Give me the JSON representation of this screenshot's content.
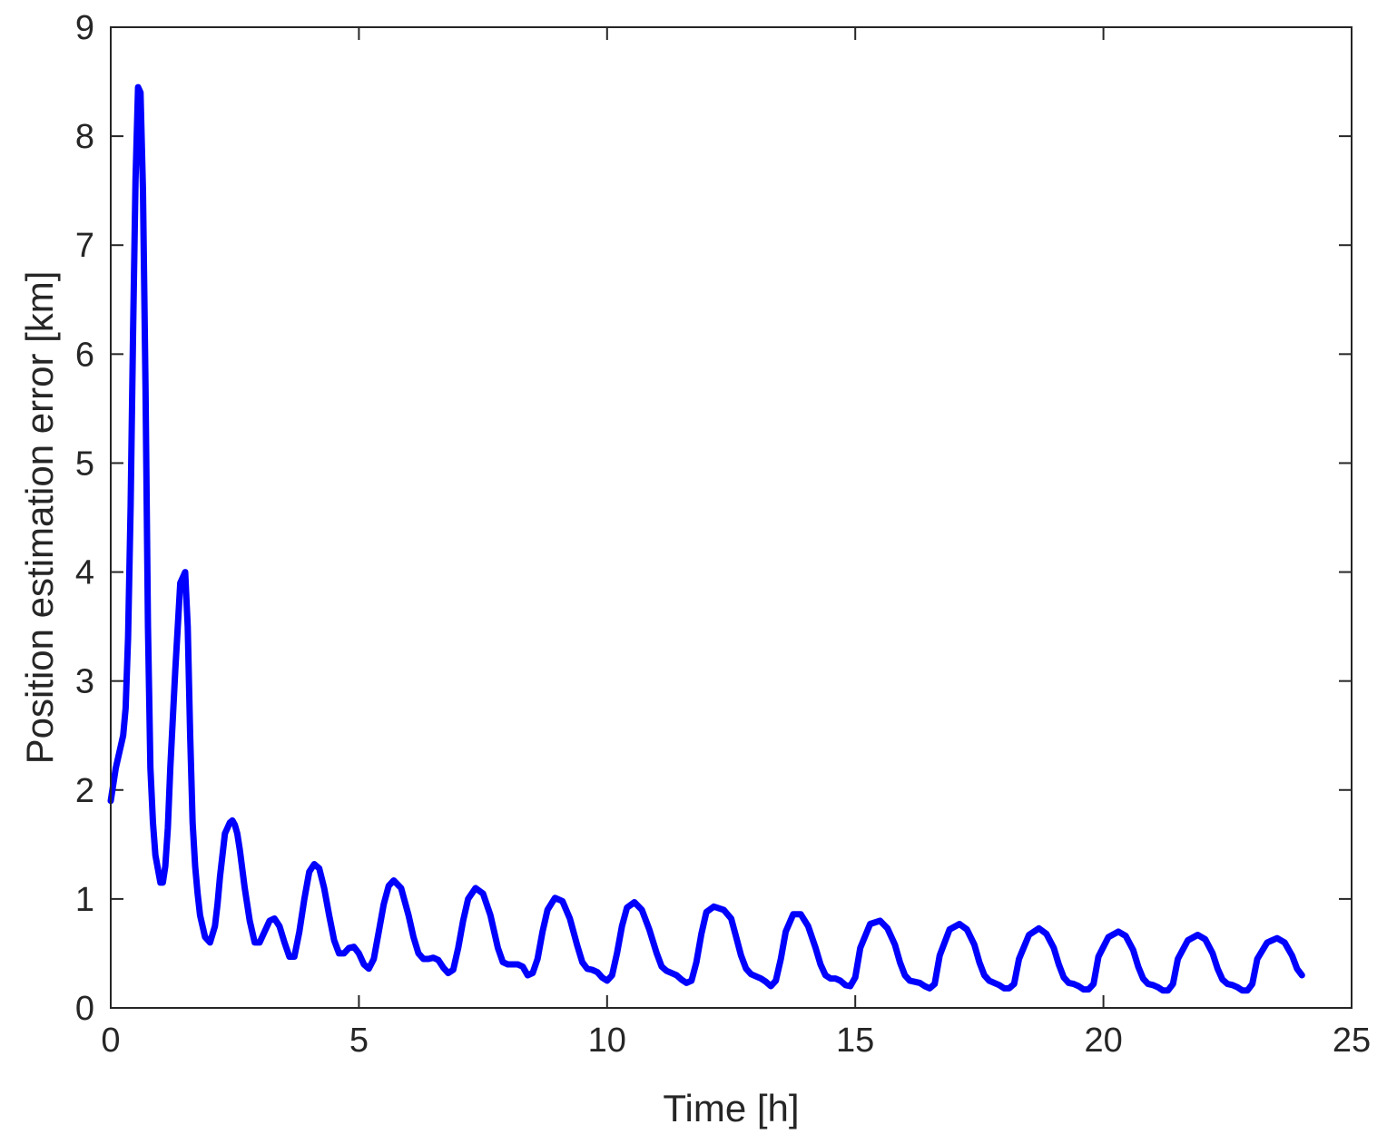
{
  "chart_data": {
    "type": "line",
    "title": "",
    "xlabel": "Time [h]",
    "ylabel": "Position estimation error [km]",
    "xlim": [
      0,
      25
    ],
    "ylim": [
      0,
      9
    ],
    "xticks": [
      0,
      5,
      10,
      15,
      20,
      25
    ],
    "yticks": [
      0,
      1,
      2,
      3,
      4,
      5,
      6,
      7,
      8,
      9
    ],
    "grid": false,
    "line_color": "#0000ff",
    "axis_color": "#262626",
    "series": [
      {
        "x": [
          0,
          0.1,
          0.25,
          0.3,
          0.35,
          0.4,
          0.45,
          0.5,
          0.55,
          0.6,
          0.65,
          0.7,
          0.75,
          0.8,
          0.85,
          0.9,
          1.0,
          1.05,
          1.1,
          1.15,
          1.2,
          1.3,
          1.4,
          1.5,
          1.55,
          1.6,
          1.65,
          1.7,
          1.75,
          1.8,
          1.9,
          2.0,
          2.1,
          2.15,
          2.2,
          2.3,
          2.4,
          2.45,
          2.5,
          2.55,
          2.6,
          2.7,
          2.8,
          2.9,
          3.0,
          3.1,
          3.2,
          3.3,
          3.4,
          3.5,
          3.6,
          3.7,
          3.8,
          3.9,
          4.0,
          4.1,
          4.2,
          4.3,
          4.4,
          4.5,
          4.6,
          4.7,
          4.8,
          4.9,
          5.0,
          5.1,
          5.2,
          5.3,
          5.4,
          5.5,
          5.6,
          5.7,
          5.85,
          6.0,
          6.1,
          6.2,
          6.3,
          6.4,
          6.5,
          6.6,
          6.7,
          6.8,
          6.9,
          7.0,
          7.1,
          7.2,
          7.35,
          7.5,
          7.65,
          7.8,
          7.9,
          8.0,
          8.1,
          8.2,
          8.3,
          8.4,
          8.5,
          8.6,
          8.7,
          8.8,
          8.95,
          9.1,
          9.25,
          9.4,
          9.5,
          9.6,
          9.7,
          9.8,
          9.9,
          10.0,
          10.1,
          10.2,
          10.3,
          10.4,
          10.55,
          10.7,
          10.85,
          11.0,
          11.1,
          11.2,
          11.3,
          11.4,
          11.5,
          11.6,
          11.7,
          11.8,
          11.9,
          12.0,
          12.15,
          12.35,
          12.5,
          12.6,
          12.7,
          12.8,
          12.9,
          13.0,
          13.1,
          13.2,
          13.3,
          13.4,
          13.5,
          13.6,
          13.75,
          13.9,
          14.05,
          14.2,
          14.3,
          14.4,
          14.5,
          14.6,
          14.7,
          14.8,
          14.9,
          15.0,
          15.1,
          15.3,
          15.5,
          15.65,
          15.8,
          15.9,
          16.0,
          16.1,
          16.2,
          16.3,
          16.4,
          16.5,
          16.6,
          16.7,
          16.9,
          17.1,
          17.25,
          17.4,
          17.5,
          17.6,
          17.7,
          17.8,
          17.9,
          18.0,
          18.1,
          18.2,
          18.3,
          18.5,
          18.7,
          18.85,
          19.0,
          19.1,
          19.2,
          19.3,
          19.4,
          19.5,
          19.6,
          19.7,
          19.8,
          19.9,
          20.1,
          20.3,
          20.45,
          20.6,
          20.7,
          20.8,
          20.9,
          21.0,
          21.1,
          21.2,
          21.3,
          21.4,
          21.5,
          21.7,
          21.9,
          22.05,
          22.2,
          22.3,
          22.4,
          22.5,
          22.6,
          22.7,
          22.8,
          22.9,
          23.0,
          23.1,
          23.3,
          23.5,
          23.65,
          23.8,
          23.9,
          24.0
        ],
        "values": [
          1.9,
          2.2,
          2.5,
          2.75,
          3.4,
          4.6,
          6.2,
          7.6,
          8.45,
          8.4,
          7.5,
          5.7,
          3.5,
          2.2,
          1.7,
          1.4,
          1.15,
          1.15,
          1.3,
          1.65,
          2.2,
          3.1,
          3.9,
          4.0,
          3.5,
          2.5,
          1.7,
          1.3,
          1.05,
          0.85,
          0.65,
          0.6,
          0.75,
          0.95,
          1.2,
          1.6,
          1.7,
          1.72,
          1.68,
          1.6,
          1.45,
          1.1,
          0.8,
          0.6,
          0.6,
          0.7,
          0.8,
          0.82,
          0.75,
          0.6,
          0.47,
          0.47,
          0.7,
          1.0,
          1.25,
          1.32,
          1.28,
          1.1,
          0.85,
          0.62,
          0.5,
          0.5,
          0.55,
          0.56,
          0.5,
          0.4,
          0.36,
          0.45,
          0.7,
          0.95,
          1.12,
          1.17,
          1.1,
          0.85,
          0.65,
          0.5,
          0.45,
          0.45,
          0.46,
          0.44,
          0.37,
          0.32,
          0.35,
          0.55,
          0.8,
          1.0,
          1.1,
          1.05,
          0.85,
          0.55,
          0.42,
          0.4,
          0.4,
          0.4,
          0.38,
          0.3,
          0.32,
          0.45,
          0.7,
          0.9,
          1.01,
          0.98,
          0.82,
          0.57,
          0.42,
          0.36,
          0.35,
          0.33,
          0.28,
          0.25,
          0.3,
          0.5,
          0.75,
          0.92,
          0.97,
          0.9,
          0.72,
          0.5,
          0.38,
          0.34,
          0.32,
          0.3,
          0.26,
          0.23,
          0.25,
          0.42,
          0.68,
          0.88,
          0.93,
          0.9,
          0.82,
          0.65,
          0.48,
          0.36,
          0.31,
          0.29,
          0.27,
          0.24,
          0.2,
          0.25,
          0.45,
          0.7,
          0.86,
          0.86,
          0.75,
          0.55,
          0.4,
          0.3,
          0.27,
          0.27,
          0.25,
          0.21,
          0.2,
          0.28,
          0.55,
          0.77,
          0.8,
          0.73,
          0.58,
          0.42,
          0.3,
          0.25,
          0.24,
          0.23,
          0.2,
          0.18,
          0.22,
          0.48,
          0.72,
          0.77,
          0.72,
          0.58,
          0.42,
          0.3,
          0.25,
          0.23,
          0.21,
          0.18,
          0.18,
          0.22,
          0.45,
          0.67,
          0.73,
          0.68,
          0.55,
          0.4,
          0.28,
          0.23,
          0.22,
          0.2,
          0.17,
          0.17,
          0.22,
          0.47,
          0.65,
          0.7,
          0.66,
          0.53,
          0.38,
          0.27,
          0.22,
          0.21,
          0.19,
          0.16,
          0.16,
          0.22,
          0.45,
          0.62,
          0.67,
          0.63,
          0.5,
          0.36,
          0.26,
          0.22,
          0.21,
          0.19,
          0.16,
          0.16,
          0.22,
          0.45,
          0.6,
          0.64,
          0.6,
          0.48,
          0.36,
          0.3
        ]
      }
    ]
  }
}
